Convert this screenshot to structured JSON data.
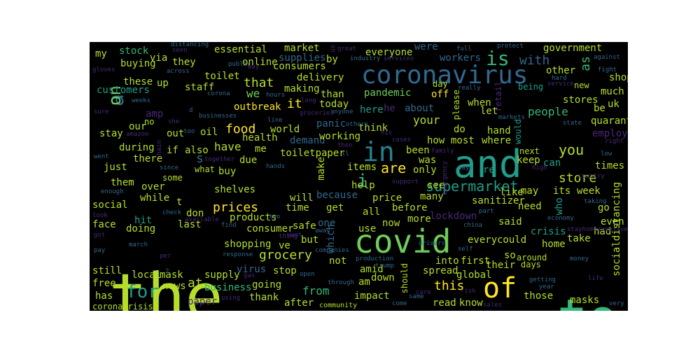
{
  "colors": {
    "background": "#000000",
    "page": "#ffffff",
    "palette": [
      "#fde725",
      "#b5de2b",
      "#6ece58",
      "#35b779",
      "#1f9e89",
      "#26828e",
      "#31688e",
      "#3e4989",
      "#482878",
      "#440154"
    ]
  },
  "words": [
    "the",
    "to",
    "and",
    "covid",
    "of",
    "coronavirus",
    "in",
    "a",
    "for",
    "is",
    "are",
    "i",
    "you",
    "on",
    "supermarket",
    "grocery",
    "prices",
    "store",
    "food",
    "people",
    "that",
    "with",
    "as",
    "it",
    "at",
    "this",
    "s",
    "we",
    "have",
    "from",
    "shop",
    "consumer",
    "shopping",
    "sanitizer",
    "stores",
    "crisis",
    "pandemic",
    "quarantine",
    "outbreak",
    "health",
    "workers",
    "employees",
    "toiletpaper",
    "panic",
    "online",
    "demand",
    "essential",
    "government",
    "supplies",
    "buying",
    "stock",
    "they",
    "toilet",
    "customers",
    "these",
    "my",
    "via",
    "staff",
    "delivery",
    "making",
    "consumers",
    "market",
    "were",
    "everyone",
    "by",
    "other",
    "much",
    "uk",
    "be",
    "new",
    "being",
    "retail",
    "please",
    "off",
    "day",
    "about",
    "he",
    "here",
    "than",
    "today",
    "when",
    "let",
    "hand",
    "would",
    "where",
    "most",
    "do",
    "how",
    "been",
    "was",
    "only",
    "items",
    "help",
    "re",
    "can",
    "keep",
    "times",
    "next",
    "week",
    "its",
    "like",
    "may",
    "need",
    "who",
    "go",
    "even",
    "had",
    "socialdistancing",
    "take",
    "home",
    "so",
    "around",
    "days",
    "their",
    "those",
    "masks",
    "know",
    "read",
    "global",
    "into",
    "first",
    "spread",
    "amid",
    "down",
    "am",
    "not",
    "impact",
    "thank",
    "after",
    "going",
    "news",
    "business",
    "local",
    "mask",
    "still",
    "free",
    "has",
    "face",
    "last",
    "doing",
    "social",
    "while",
    "over",
    "them",
    "just",
    "during",
    "there",
    "if",
    "also",
    "our",
    "no",
    "amp",
    "stay",
    "out",
    "oil",
    "up",
    "working",
    "world",
    "me",
    "due",
    "buy",
    "what",
    "some",
    "shelves",
    "products",
    "safe",
    "but",
    "use",
    "every",
    "could",
    "said",
    "lockdown",
    "more",
    "now",
    "before",
    "all",
    "time",
    "get",
    "because",
    "will",
    "price",
    "many",
    "see",
    "don",
    "t",
    "ve",
    "one",
    "which",
    "supply",
    "stop",
    "virus",
    "paper",
    "should",
    "make",
    "think",
    "your",
    "coronacrisis",
    "community",
    "come",
    "sales",
    "very",
    "life",
    "year",
    "getting",
    "money",
    "trump",
    "production",
    "companies",
    "china",
    "drivers",
    "economy",
    "pay",
    "march",
    "per",
    "response",
    "gas",
    "using",
    "through",
    "open",
    "want",
    "thing",
    "find",
    "look",
    "check",
    "got",
    "hit",
    "enough",
    "went",
    "sure",
    "gloves",
    "since",
    "together",
    "hands",
    "line",
    "others",
    "then",
    "ll",
    "cases",
    "his",
    "support",
    "emergency",
    "family",
    "says",
    "high",
    "country",
    "low",
    "right",
    "state",
    "markets",
    "really",
    "hard",
    "service",
    "fight",
    "against",
    "protect",
    "full",
    "great",
    "us",
    "industry",
    "services",
    "seen",
    "distancing",
    "public",
    "way",
    "across",
    "corona",
    "hours",
    "long",
    "anyone",
    "groceries",
    "businesses",
    "she",
    "too",
    "amazon",
    "chain",
    "available",
    "two",
    "away",
    "self",
    "stayhomesavelives",
    "taking",
    "part",
    "weeks",
    "d",
    "risk",
    "same",
    "care",
    "2"
  ]
}
